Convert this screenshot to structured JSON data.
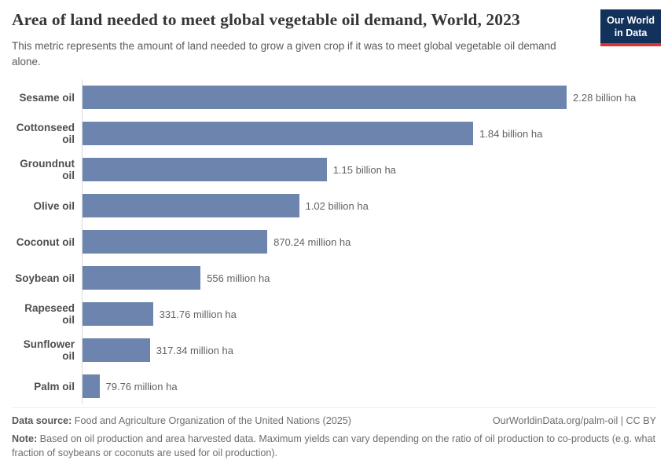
{
  "header": {
    "title": "Area of land needed to meet global vegetable oil demand, World, 2023",
    "subtitle": "This metric represents the amount of land needed to grow a given crop if it was to meet global vegetable oil demand alone.",
    "logo": {
      "line1": "Our World",
      "line2": "in Data"
    }
  },
  "chart_data": {
    "type": "bar",
    "orientation": "horizontal",
    "title": "Area of land needed to meet global vegetable oil demand, World, 2023",
    "unit": "hectares",
    "xlim_million_ha": [
      0,
      2280
    ],
    "grid": false,
    "legend": "none",
    "bar_color": "#6d85ae",
    "categories": [
      "Sesame oil",
      "Cottonseed oil",
      "Groundnut oil",
      "Olive oil",
      "Coconut oil",
      "Soybean oil",
      "Rapeseed oil",
      "Sunflower oil",
      "Palm oil"
    ],
    "values_million_ha": [
      2280,
      1840,
      1150,
      1020,
      870.24,
      556,
      331.76,
      317.34,
      79.76
    ],
    "value_labels": [
      "2.28 billion ha",
      "1.84 billion ha",
      "1.15 billion ha",
      "1.02 billion ha",
      "870.24 million ha",
      "556 million ha",
      "331.76 million ha",
      "317.34 million ha",
      "79.76 million ha"
    ]
  },
  "footer": {
    "datasource_label": "Data source:",
    "datasource_text": " Food and Agriculture Organization of the United Nations (2025)",
    "citation": "OurWorldinData.org/palm-oil | CC BY",
    "note_label": "Note:",
    "note_text": " Based on oil production and area harvested data. Maximum yields can vary depending on the ratio of oil production to co-products (e.g. what fraction of soybeans or coconuts are used for oil production)."
  }
}
